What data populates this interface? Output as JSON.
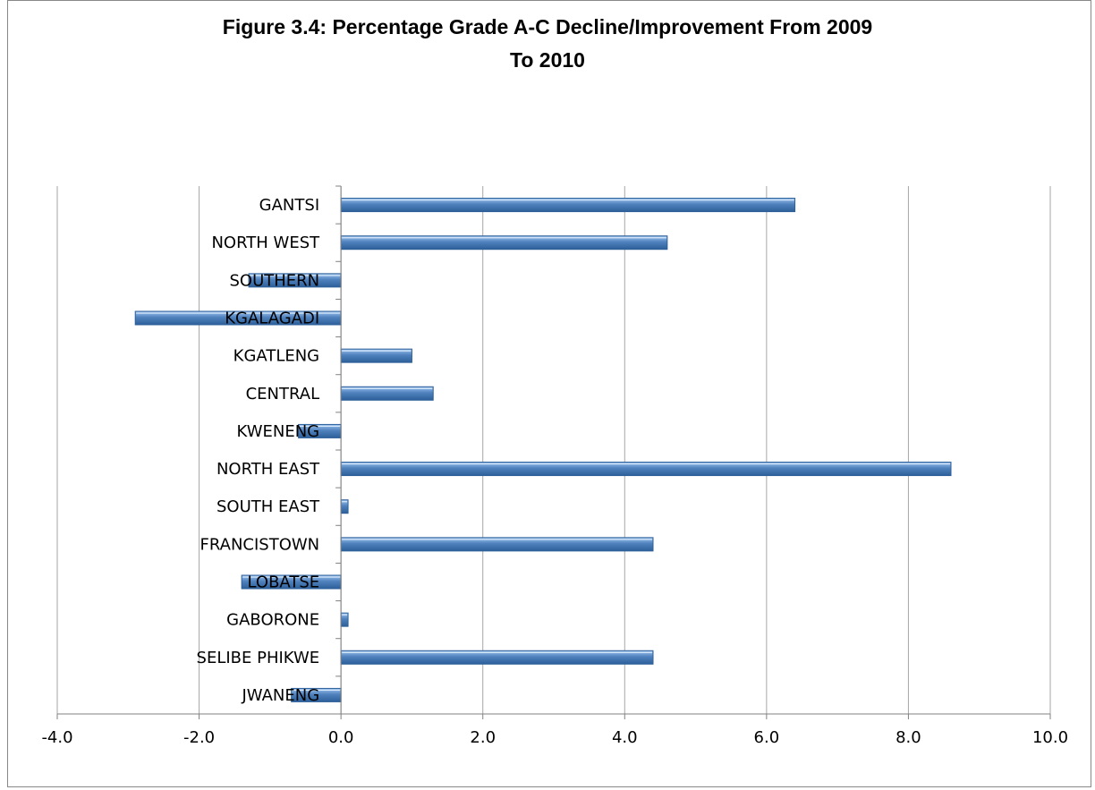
{
  "title_lines": [
    "Figure 3.4: Percentage Grade A-C Decline/Improvement From 2009",
    "To 2010"
  ],
  "colors": {
    "bar_fill": "#4F81BD",
    "bar_light": "#9CC3EE",
    "bar_dark": "#2D5F99",
    "grid": "#A6A6A6",
    "axis": "#808080"
  },
  "chart_data": {
    "type": "bar",
    "orientation": "horizontal",
    "title": "Figure 3.4: Percentage Grade A-C Decline/Improvement From 2009 To 2010",
    "xlabel": "",
    "ylabel": "",
    "categories": [
      "GANTSI",
      "NORTH WEST",
      "SOUTHERN",
      "KGALAGADI",
      "KGATLENG",
      "CENTRAL",
      "KWENENG",
      "NORTH EAST",
      "SOUTH EAST",
      "FRANCISTOWN",
      "LOBATSE",
      "GABORONE",
      "SELIBE PHIKWE",
      "JWANENG"
    ],
    "values": [
      6.4,
      4.6,
      -1.3,
      -2.9,
      1.0,
      1.3,
      -0.6,
      8.6,
      0.1,
      4.4,
      -1.4,
      0.1,
      4.4,
      -0.7
    ],
    "xlim": [
      -4.0,
      10.0
    ],
    "xticks": [
      "-4.0",
      "-2.0",
      "0.0",
      "2.0",
      "4.0",
      "6.0",
      "8.0",
      "10.0"
    ],
    "grid": true,
    "legend": "none"
  }
}
